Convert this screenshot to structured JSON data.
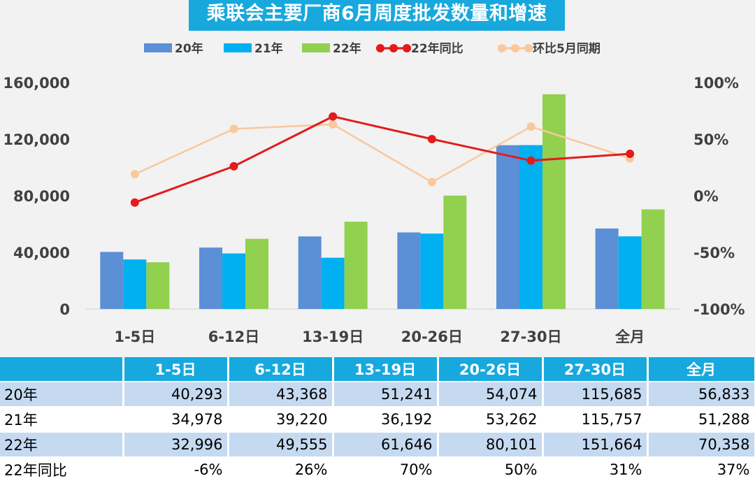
{
  "title": "乘联会主要厂商6月周度批发数量和增速",
  "colors": {
    "s20": "#5b8fd6",
    "s21": "#00b0f0",
    "s22": "#92d050",
    "yoy": "#e31b1b",
    "mom": "#f9c89b",
    "header_bg": "#17a8dd",
    "row_light": "#c5d9f1"
  },
  "chart_data": {
    "type": "bar",
    "categories": [
      "1-5日",
      "6-12日",
      "13-19日",
      "20-26日",
      "27-30日",
      "全月"
    ],
    "series": [
      {
        "name": "20年",
        "type": "bar",
        "axis": "left",
        "values": [
          40293,
          43368,
          51241,
          54074,
          115685,
          56833
        ]
      },
      {
        "name": "21年",
        "type": "bar",
        "axis": "left",
        "values": [
          34978,
          39220,
          36192,
          53262,
          115757,
          51288
        ]
      },
      {
        "name": "22年",
        "type": "bar",
        "axis": "left",
        "values": [
          32996,
          49555,
          61646,
          80101,
          151664,
          70358
        ]
      },
      {
        "name": "22年同比",
        "type": "line",
        "axis": "right",
        "values": [
          -6,
          26,
          70,
          50,
          31,
          37
        ]
      },
      {
        "name": "环比5月同期",
        "type": "line",
        "axis": "right",
        "values": [
          19,
          59,
          63,
          12,
          61,
          33
        ]
      }
    ],
    "left_axis": {
      "ticks": [
        "0",
        "40,000",
        "80,000",
        "120,000",
        "160,000"
      ],
      "ylim": [
        0,
        160000
      ]
    },
    "right_axis": {
      "ticks": [
        "-100%",
        "-50%",
        "0%",
        "50%",
        "100%"
      ],
      "ylim": [
        -100,
        100
      ],
      "unit": "%"
    },
    "legend": "top"
  },
  "table": {
    "header": [
      "1-5日",
      "6-12日",
      "13-19日",
      "20-26日",
      "27-30日",
      "全月"
    ],
    "rows": [
      {
        "label": "20年",
        "cells": [
          "40,293",
          "43,368",
          "51,241",
          "54,074",
          "115,685",
          "56,833"
        ]
      },
      {
        "label": "21年",
        "cells": [
          "34,978",
          "39,220",
          "36,192",
          "53,262",
          "115,757",
          "51,288"
        ]
      },
      {
        "label": "22年",
        "cells": [
          "32,996",
          "49,555",
          "61,646",
          "80,101",
          "151,664",
          "70,358"
        ]
      },
      {
        "label": "22年同比",
        "cells": [
          "-6%",
          "26%",
          "70%",
          "50%",
          "31%",
          "37%"
        ]
      }
    ]
  }
}
